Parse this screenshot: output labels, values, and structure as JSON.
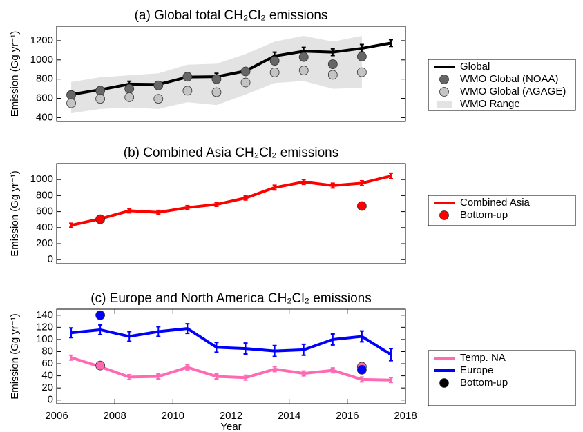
{
  "chart_data": [
    {
      "type": "line",
      "title": "(a) Global total CH₂Cl₂ emissions",
      "y_label": "Emission (Gg yr⁻¹)",
      "xlim": [
        2006,
        2018
      ],
      "ylim": [
        360,
        1350
      ],
      "yticks": [
        400,
        600,
        800,
        1000,
        1200
      ],
      "series": [
        {
          "name": "WMO Range",
          "kind": "band",
          "color": "#e3e3e3",
          "x": [
            2006.5,
            2007.5,
            2008.5,
            2009.5,
            2010.5,
            2011.5,
            2012.5,
            2013.5,
            2014.5,
            2015.5,
            2016.5
          ],
          "lower": [
            445,
            490,
            505,
            490,
            560,
            530,
            640,
            760,
            780,
            700,
            710
          ],
          "upper": [
            770,
            820,
            840,
            860,
            950,
            960,
            1060,
            1190,
            1250,
            1190,
            1250
          ]
        },
        {
          "name": "Global",
          "kind": "line",
          "color": "#000000",
          "x": [
            2006.5,
            2007.5,
            2008.5,
            2009.5,
            2010.5,
            2011.5,
            2012.5,
            2013.5,
            2014.5,
            2015.5,
            2016.5,
            2017.5
          ],
          "values": [
            640,
            690,
            748,
            745,
            822,
            825,
            885,
            1040,
            1090,
            1080,
            1120,
            1175
          ],
          "errors": [
            30,
            35,
            30,
            30,
            30,
            35,
            30,
            40,
            40,
            35,
            40,
            35
          ]
        },
        {
          "name": "WMO Global (NOAA)",
          "kind": "scatter",
          "color": "#666666",
          "x": [
            2006.5,
            2007.5,
            2008.5,
            2009.5,
            2010.5,
            2011.5,
            2012.5,
            2013.5,
            2014.5,
            2015.5,
            2016.5
          ],
          "values": [
            635,
            680,
            700,
            735,
            825,
            800,
            880,
            990,
            1030,
            955,
            1035
          ]
        },
        {
          "name": "WMO Global (AGAGE)",
          "kind": "scatter",
          "color": "#c4c4c4",
          "x": [
            2006.5,
            2007.5,
            2008.5,
            2009.5,
            2010.5,
            2011.5,
            2012.5,
            2013.5,
            2014.5,
            2015.5,
            2016.5
          ],
          "values": [
            550,
            595,
            612,
            595,
            680,
            665,
            765,
            870,
            890,
            845,
            872
          ]
        }
      ]
    },
    {
      "type": "line",
      "title": "(b) Combined Asia CH₂Cl₂ emissions",
      "y_label": "Emission (Gg yr⁻¹)",
      "xlim": [
        2006,
        2018
      ],
      "ylim": [
        -50,
        1200
      ],
      "yticks": [
        0,
        200,
        400,
        600,
        800,
        1000
      ],
      "series": [
        {
          "name": "Combined Asia",
          "kind": "line",
          "color": "#ff0000",
          "x": [
            2006.5,
            2007.5,
            2008.5,
            2009.5,
            2010.5,
            2011.5,
            2012.5,
            2013.5,
            2014.5,
            2015.5,
            2016.5,
            2017.5
          ],
          "values": [
            430,
            510,
            610,
            590,
            650,
            690,
            770,
            900,
            970,
            925,
            955,
            1045
          ],
          "errors": [
            25,
            25,
            25,
            25,
            25,
            25,
            25,
            30,
            30,
            30,
            30,
            35
          ]
        },
        {
          "name": "Bottom-up",
          "kind": "scatter",
          "color": "#ff0000",
          "x": [
            2007.5,
            2016.5
          ],
          "values": [
            505,
            670
          ]
        }
      ]
    },
    {
      "type": "line",
      "title": "(c) Europe and North America CH₂Cl₂ emissions",
      "y_label": "Emission (Gg yr⁻¹)",
      "x_label": "Year",
      "xlim": [
        2006,
        2018
      ],
      "xticks": [
        2006,
        2008,
        2010,
        2012,
        2014,
        2016,
        2018
      ],
      "ylim": [
        -6,
        150
      ],
      "yticks": [
        0,
        20,
        40,
        60,
        80,
        100,
        120,
        140
      ],
      "series": [
        {
          "name": "Temp. NA",
          "kind": "line",
          "color": "#ff69b4",
          "x": [
            2006.5,
            2007.5,
            2008.5,
            2009.5,
            2010.5,
            2011.5,
            2012.5,
            2013.5,
            2014.5,
            2015.5,
            2016.5,
            2017.5
          ],
          "values": [
            70,
            55,
            38,
            39,
            54,
            39,
            37,
            51,
            44,
            49,
            34,
            33
          ],
          "errors": [
            4,
            4,
            4,
            4,
            4,
            4,
            4,
            4,
            4,
            4,
            4,
            4
          ]
        },
        {
          "name": "Europe",
          "kind": "line",
          "color": "#0000ff",
          "x": [
            2006.5,
            2007.5,
            2008.5,
            2009.5,
            2010.5,
            2011.5,
            2012.5,
            2013.5,
            2014.5,
            2015.5,
            2016.5,
            2017.5
          ],
          "values": [
            111,
            116,
            105,
            113,
            118,
            87,
            85,
            81,
            83,
            100,
            105,
            75
          ],
          "errors": [
            8,
            8,
            8,
            8,
            8,
            8,
            9,
            9,
            9,
            9,
            9,
            10
          ]
        },
        {
          "name": "Bottom-up",
          "kind": "scatter",
          "color": "#000000",
          "x": [
            2007.5,
            2007.5,
            2016.5,
            2016.5
          ],
          "values": [
            140,
            57,
            55,
            50
          ],
          "point_colors": [
            "#0000ff",
            "#ff69b4",
            "#ff69b4",
            "#0000ff"
          ]
        }
      ]
    }
  ]
}
